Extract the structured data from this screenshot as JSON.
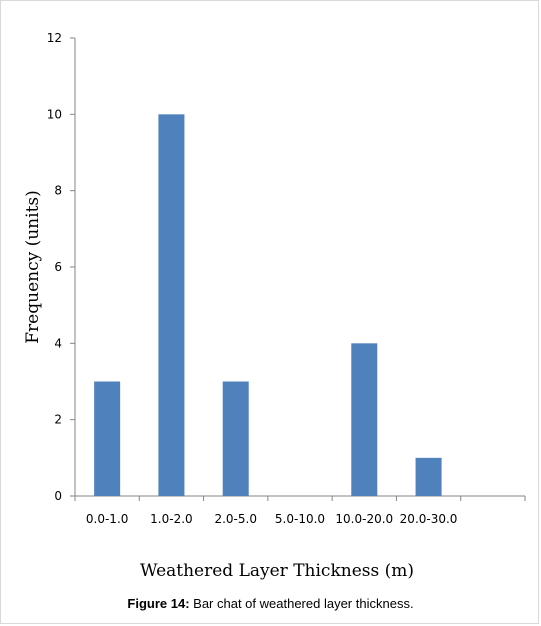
{
  "caption": {
    "label": "Figure 14:",
    "text": " Bar chat of weathered layer thickness."
  },
  "colors": {
    "bar": "#4f81bd",
    "axis": "#868686"
  },
  "chart_data": {
    "type": "bar",
    "categories": [
      "0.0-1.0",
      "1.0-2.0",
      "2.0-5.0",
      "5.0-10.0",
      "10.0-20.0",
      "20.0-30.0",
      ""
    ],
    "values": [
      3,
      10,
      3,
      0,
      4,
      1,
      0
    ],
    "title": "",
    "xlabel": "Weathered Layer Thickness (m)",
    "ylabel": "Frequency (units)",
    "ylim": [
      0,
      12
    ],
    "yticks": [
      0,
      2,
      4,
      6,
      8,
      10,
      12
    ],
    "grid": false,
    "legend": "none"
  }
}
